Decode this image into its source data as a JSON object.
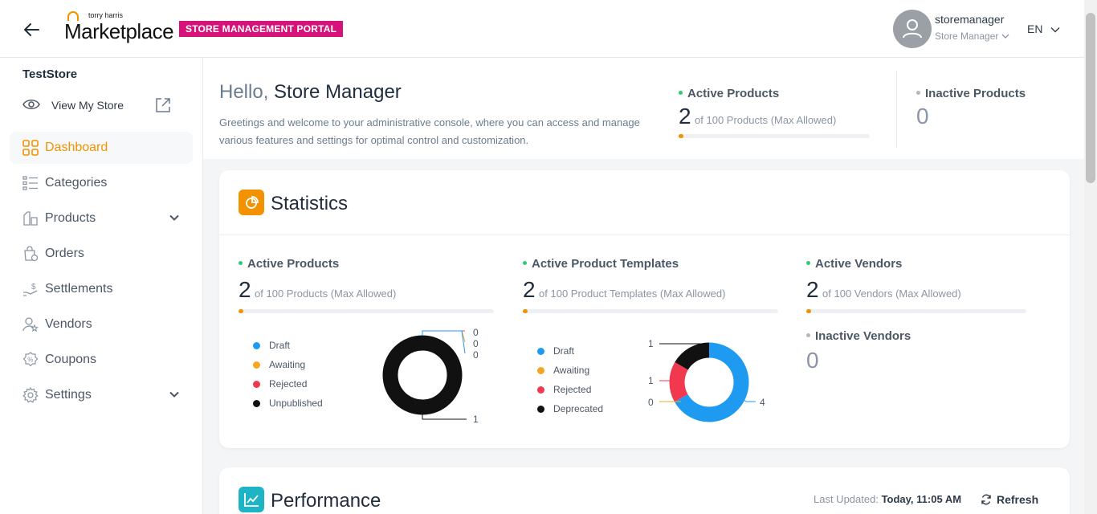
{
  "header": {
    "logo_small": "torry harris",
    "logo_big": "Marketplace",
    "portal_badge": "STORE MANAGEMENT PORTAL",
    "user_name": "storemanager",
    "user_role": "Store Manager",
    "language": "EN"
  },
  "sidebar": {
    "store_name": "TestStore",
    "view_store_label": "View My Store",
    "items": [
      {
        "label": "Dashboard",
        "icon": "grid-icon",
        "active": true
      },
      {
        "label": "Categories",
        "icon": "list-icon"
      },
      {
        "label": "Products",
        "icon": "products-icon",
        "expandable": true
      },
      {
        "label": "Orders",
        "icon": "orders-icon"
      },
      {
        "label": "Settlements",
        "icon": "settlements-icon"
      },
      {
        "label": "Vendors",
        "icon": "vendors-icon"
      },
      {
        "label": "Coupons",
        "icon": "coupon-icon"
      },
      {
        "label": "Settings",
        "icon": "gear-icon",
        "expandable": true
      }
    ]
  },
  "welcome": {
    "hello_prefix": "Hello,",
    "hello_name": "Store Manager",
    "greeting": "Greetings and welcome to your administrative console, where you can access and manage various features and settings for optimal control and customization.",
    "active_products": {
      "title": "Active Products",
      "count": "2",
      "sub": "of 100 Products (Max Allowed)",
      "fraction": 0.02
    },
    "inactive_products": {
      "title": "Inactive Products",
      "count": "0"
    }
  },
  "statistics": {
    "title": "Statistics",
    "products": {
      "title": "Active Products",
      "count": "2",
      "sub": "of 100 Products (Max Allowed)",
      "fraction": 0.02,
      "legend": [
        "Draft",
        "Awaiting",
        "Rejected",
        "Unpublished"
      ],
      "values": {
        "draft": "0",
        "awaiting": "0",
        "rejected": "0",
        "unpublished": "1"
      }
    },
    "templates": {
      "title": "Active Product Templates",
      "count": "2",
      "sub": "of 100 Product Templates (Max Allowed)",
      "fraction": 0.02,
      "legend": [
        "Draft",
        "Awaiting",
        "Rejected",
        "Deprecated"
      ],
      "values": {
        "draft": "4",
        "awaiting": "0",
        "rejected": "1",
        "deprecated": "1"
      }
    },
    "vendors": {
      "title": "Active Vendors",
      "count": "2",
      "sub": "of 100 Vendors (Max Allowed)",
      "fraction": 0.02,
      "inactive_title": "Inactive Vendors",
      "inactive_count": "0"
    }
  },
  "performance": {
    "title": "Performance",
    "last_updated_label": "Last Updated:",
    "last_updated_value": "Today, 11:05 AM",
    "refresh_label": "Refresh"
  },
  "colors": {
    "accent": "#f39200",
    "badge": "#d6137b",
    "draft": "#1e9bf0",
    "awaiting": "#f5a623",
    "rejected": "#f2384f",
    "dark": "#111111",
    "active_dot": "#2ecc71",
    "inactive_dot": "#b0b7bf"
  }
}
